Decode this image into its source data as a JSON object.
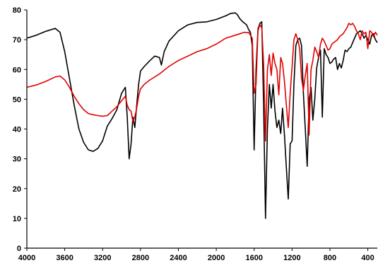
{
  "chart_data": {
    "type": "line",
    "title": "",
    "xlabel": "",
    "ylabel": "",
    "xlim": [
      4000,
      300
    ],
    "ylim": [
      0,
      80
    ],
    "x_reversed": true,
    "grid": false,
    "legend": "none",
    "x_ticks": [
      4000,
      3600,
      3200,
      2800,
      2400,
      2000,
      1600,
      1200,
      800,
      400
    ],
    "y_ticks": [
      0,
      10,
      20,
      30,
      40,
      50,
      60,
      70,
      80
    ],
    "series": [
      {
        "color": "#000000",
        "x": [
          4000,
          3900,
          3800,
          3700,
          3650,
          3600,
          3550,
          3500,
          3450,
          3400,
          3350,
          3300,
          3250,
          3200,
          3150,
          3100,
          3050,
          3000,
          2960,
          2940,
          2920,
          2900,
          2880,
          2860,
          2840,
          2820,
          2800,
          2760,
          2700,
          2650,
          2600,
          2580,
          2550,
          2500,
          2400,
          2300,
          2200,
          2100,
          2000,
          1900,
          1850,
          1800,
          1780,
          1750,
          1720,
          1700,
          1680,
          1660,
          1640,
          1620,
          1600,
          1580,
          1560,
          1540,
          1520,
          1500,
          1480,
          1460,
          1440,
          1420,
          1400,
          1380,
          1360,
          1340,
          1320,
          1300,
          1280,
          1260,
          1240,
          1220,
          1200,
          1180,
          1160,
          1140,
          1120,
          1100,
          1080,
          1060,
          1040,
          1030,
          1020,
          1000,
          980,
          960,
          940,
          920,
          900,
          880,
          860,
          840,
          820,
          800,
          780,
          760,
          740,
          720,
          700,
          680,
          660,
          640,
          620,
          600,
          580,
          560,
          540,
          520,
          500,
          480,
          460,
          440,
          420,
          400,
          380,
          360,
          340,
          320,
          300
        ],
        "y": [
          70.5,
          71.5,
          72.8,
          73.8,
          72.5,
          66.0,
          57.0,
          48.0,
          40.0,
          35.5,
          33.0,
          32.5,
          33.5,
          36.0,
          41.0,
          43.5,
          46.5,
          52.0,
          54.0,
          44.0,
          30.0,
          35.0,
          44.0,
          40.5,
          48.0,
          55.0,
          59.5,
          61.0,
          63.0,
          64.5,
          64.0,
          61.5,
          66.0,
          69.5,
          73.0,
          75.0,
          75.8,
          76.0,
          76.8,
          78.0,
          78.8,
          79.0,
          78.5,
          77.0,
          76.0,
          75.5,
          75.0,
          73.5,
          72.5,
          68.0,
          33.0,
          60.0,
          73.5,
          75.5,
          76.0,
          48.0,
          10.0,
          40.0,
          55.0,
          47.0,
          55.0,
          46.0,
          40.5,
          43.0,
          38.5,
          47.0,
          38.0,
          27.0,
          16.5,
          35.0,
          36.0,
          55.0,
          68.0,
          70.0,
          70.5,
          68.0,
          52.0,
          40.0,
          27.5,
          38.0,
          50.0,
          54.0,
          43.0,
          50.0,
          60.5,
          64.0,
          66.5,
          44.0,
          67.0,
          65.0,
          64.0,
          62.0,
          62.5,
          63.5,
          64.0,
          60.0,
          62.0,
          60.5,
          63.0,
          66.5,
          66.0,
          67.0,
          67.5,
          69.0,
          70.5,
          72.0,
          72.5,
          73.0,
          72.0,
          70.5,
          71.5,
          70.0,
          68.5,
          71.5,
          72.0,
          70.0,
          69.0
        ]
      },
      {
        "color": "#e00000",
        "x": [
          4000,
          3900,
          3800,
          3700,
          3650,
          3600,
          3550,
          3500,
          3450,
          3400,
          3350,
          3300,
          3250,
          3200,
          3150,
          3100,
          3050,
          3000,
          2960,
          2940,
          2920,
          2900,
          2880,
          2860,
          2840,
          2820,
          2800,
          2760,
          2700,
          2600,
          2500,
          2400,
          2300,
          2200,
          2100,
          2000,
          1900,
          1800,
          1750,
          1720,
          1700,
          1680,
          1660,
          1640,
          1620,
          1600,
          1580,
          1560,
          1540,
          1520,
          1500,
          1480,
          1460,
          1440,
          1420,
          1400,
          1380,
          1360,
          1340,
          1320,
          1300,
          1280,
          1260,
          1240,
          1220,
          1200,
          1180,
          1160,
          1140,
          1120,
          1100,
          1080,
          1060,
          1040,
          1020,
          1000,
          980,
          960,
          940,
          920,
          900,
          880,
          860,
          840,
          820,
          800,
          780,
          760,
          740,
          720,
          700,
          680,
          660,
          640,
          620,
          600,
          580,
          560,
          540,
          520,
          500,
          480,
          460,
          440,
          420,
          400,
          380,
          360,
          340,
          320,
          300
        ],
        "y": [
          54.0,
          54.8,
          56.0,
          57.5,
          57.8,
          56.5,
          54.0,
          51.0,
          48.5,
          46.5,
          45.2,
          44.8,
          44.5,
          44.3,
          44.5,
          46.0,
          47.5,
          49.5,
          51.0,
          48.0,
          46.5,
          46.0,
          42.5,
          44.0,
          47.0,
          51.0,
          53.5,
          55.0,
          56.5,
          58.5,
          61.0,
          63.0,
          64.5,
          66.0,
          67.0,
          68.5,
          70.5,
          71.5,
          72.0,
          72.3,
          72.5,
          72.3,
          72.5,
          71.5,
          70.5,
          52.0,
          55.0,
          73.0,
          75.0,
          74.0,
          62.0,
          36.0,
          60.0,
          65.0,
          58.0,
          65.5,
          62.0,
          60.0,
          51.5,
          64.0,
          62.0,
          56.0,
          48.0,
          40.5,
          52.0,
          61.0,
          70.0,
          72.0,
          70.0,
          67.0,
          57.0,
          53.0,
          58.0,
          62.0,
          38.0,
          60.0,
          63.0,
          67.5,
          66.0,
          64.0,
          68.5,
          70.5,
          69.5,
          68.0,
          66.5,
          67.0,
          68.5,
          69.0,
          69.5,
          70.0,
          71.0,
          71.5,
          72.0,
          73.0,
          74.0,
          75.5,
          75.0,
          75.5,
          74.5,
          73.0,
          72.0,
          70.0,
          73.0,
          72.0,
          72.5,
          67.0,
          73.0,
          72.5,
          71.0,
          72.5,
          71.5
        ]
      }
    ]
  }
}
